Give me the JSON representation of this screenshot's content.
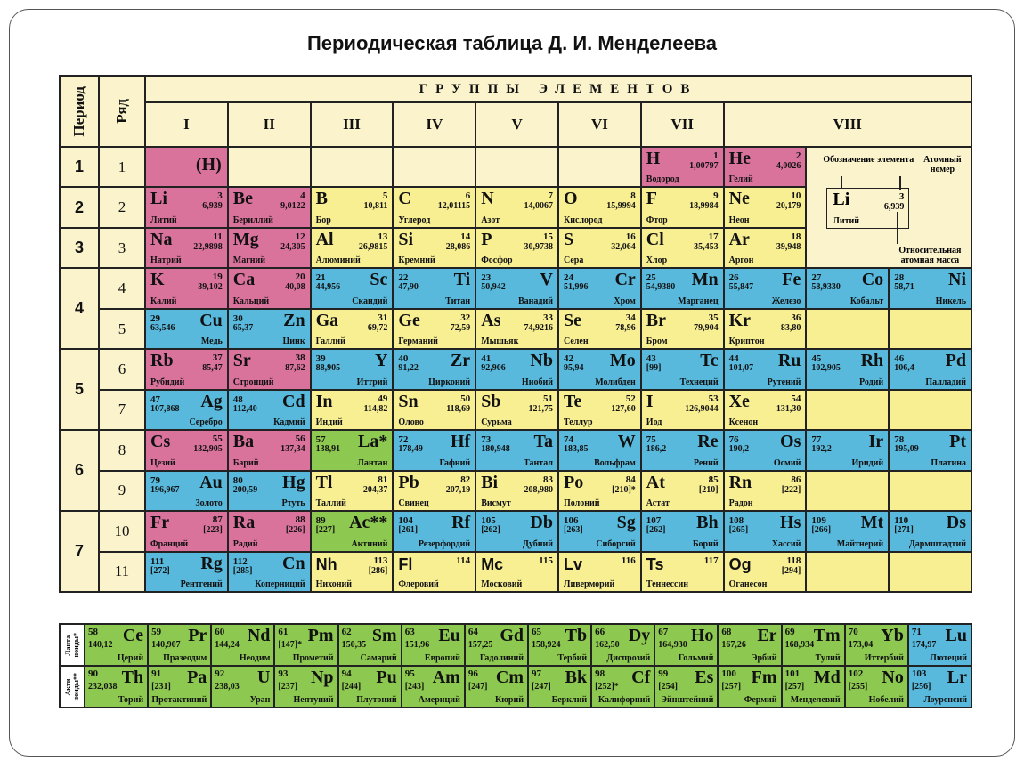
{
  "title": "Периодическая таблица Д. И. Менделеева",
  "colors": {
    "s": "#d9739c",
    "p": "#f8ef93",
    "d": "#58b9dc",
    "f": "#8dc850",
    "empty": "#faf3cc"
  },
  "headers": {
    "period": "Период",
    "row": "Ряд",
    "groups": "ГРУППЫ ЭЛЕМЕНТОВ",
    "group_numerals": [
      "I",
      "II",
      "III",
      "IV",
      "V",
      "VI",
      "VII",
      "VIII"
    ]
  },
  "periods": [
    {
      "label": "1",
      "rows": 1
    },
    {
      "label": "2",
      "rows": 1
    },
    {
      "label": "3",
      "rows": 1
    },
    {
      "label": "4",
      "rows": 2
    },
    {
      "label": "5",
      "rows": 2
    },
    {
      "label": "6",
      "rows": 2
    },
    {
      "label": "7",
      "rows": 2
    }
  ],
  "row_labels": [
    "1",
    "2",
    "3",
    "4",
    "5",
    "6",
    "7",
    "8",
    "9",
    "10",
    "11"
  ],
  "hydrogen_placeholder": "(H)",
  "legend": {
    "symbol_label": "Обозначение элемента",
    "number_label": "Атомный номер",
    "mass_label": "Относительная атомная масса",
    "sample": {
      "sym": "Li",
      "z": "3",
      "mass": "6,939",
      "name": "Литий"
    }
  },
  "rows": [
    [
      "HX",
      null,
      null,
      null,
      null,
      null,
      {
        "sym": "H",
        "z": "1",
        "mass": "1,00797",
        "name": "Водород",
        "type": "s",
        "side": "L"
      },
      {
        "sym": "He",
        "z": "2",
        "mass": "4,0026",
        "name": "Гелий",
        "type": "s",
        "side": "L"
      },
      "LEG",
      "LEG"
    ],
    [
      {
        "sym": "Li",
        "z": "3",
        "mass": "6,939",
        "name": "Литий",
        "type": "s",
        "side": "L"
      },
      {
        "sym": "Be",
        "z": "4",
        "mass": "9,0122",
        "name": "Бериллий",
        "type": "s",
        "side": "L"
      },
      {
        "sym": "B",
        "z": "5",
        "mass": "10,811",
        "name": "Бор",
        "type": "p",
        "side": "L"
      },
      {
        "sym": "C",
        "z": "6",
        "mass": "12,01115",
        "name": "Углерод",
        "type": "p",
        "side": "L"
      },
      {
        "sym": "N",
        "z": "7",
        "mass": "14,0067",
        "name": "Азот",
        "type": "p",
        "side": "L"
      },
      {
        "sym": "O",
        "z": "8",
        "mass": "15,9994",
        "name": "Кислород",
        "type": "p",
        "side": "L"
      },
      {
        "sym": "F",
        "z": "9",
        "mass": "18,9984",
        "name": "Фтор",
        "type": "p",
        "side": "L"
      },
      {
        "sym": "Ne",
        "z": "10",
        "mass": "20,179",
        "name": "Неон",
        "type": "p",
        "side": "L"
      },
      "LEG",
      "LEG"
    ],
    [
      {
        "sym": "Na",
        "z": "11",
        "mass": "22,9898",
        "name": "Натрий",
        "type": "s",
        "side": "L"
      },
      {
        "sym": "Mg",
        "z": "12",
        "mass": "24,305",
        "name": "Магний",
        "type": "s",
        "side": "L"
      },
      {
        "sym": "Al",
        "z": "13",
        "mass": "26,9815",
        "name": "Алюминий",
        "type": "p",
        "side": "L"
      },
      {
        "sym": "Si",
        "z": "14",
        "mass": "28,086",
        "name": "Кремний",
        "type": "p",
        "side": "L"
      },
      {
        "sym": "P",
        "z": "15",
        "mass": "30,9738",
        "name": "Фосфор",
        "type": "p",
        "side": "L"
      },
      {
        "sym": "S",
        "z": "16",
        "mass": "32,064",
        "name": "Сера",
        "type": "p",
        "side": "L"
      },
      {
        "sym": "Cl",
        "z": "17",
        "mass": "35,453",
        "name": "Хлор",
        "type": "p",
        "side": "L"
      },
      {
        "sym": "Ar",
        "z": "18",
        "mass": "39,948",
        "name": "Аргон",
        "type": "p",
        "side": "L"
      },
      "LEG",
      "LEG"
    ],
    [
      {
        "sym": "K",
        "z": "19",
        "mass": "39,102",
        "name": "Калий",
        "type": "s",
        "side": "L"
      },
      {
        "sym": "Ca",
        "z": "20",
        "mass": "40,08",
        "name": "Кальций",
        "type": "s",
        "side": "L"
      },
      {
        "sym": "Sc",
        "z": "21",
        "mass": "44,956",
        "name": "Скандий",
        "type": "d",
        "side": "R"
      },
      {
        "sym": "Ti",
        "z": "22",
        "mass": "47,90",
        "name": "Титан",
        "type": "d",
        "side": "R"
      },
      {
        "sym": "V",
        "z": "23",
        "mass": "50,942",
        "name": "Ванадий",
        "type": "d",
        "side": "R"
      },
      {
        "sym": "Cr",
        "z": "24",
        "mass": "51,996",
        "name": "Хром",
        "type": "d",
        "side": "R"
      },
      {
        "sym": "Mn",
        "z": "25",
        "mass": "54,9380",
        "name": "Марганец",
        "type": "d",
        "side": "R"
      },
      {
        "sym": "Fe",
        "z": "26",
        "mass": "55,847",
        "name": "Железо",
        "type": "d",
        "side": "R"
      },
      {
        "sym": "Co",
        "z": "27",
        "mass": "58,9330",
        "name": "Кобальт",
        "type": "d",
        "side": "R"
      },
      {
        "sym": "Ni",
        "z": "28",
        "mass": "58,71",
        "name": "Никель",
        "type": "d",
        "side": "R"
      }
    ],
    [
      {
        "sym": "Cu",
        "z": "29",
        "mass": "63,546",
        "name": "Медь",
        "type": "d",
        "side": "R"
      },
      {
        "sym": "Zn",
        "z": "30",
        "mass": "65,37",
        "name": "Цинк",
        "type": "d",
        "side": "R"
      },
      {
        "sym": "Ga",
        "z": "31",
        "mass": "69,72",
        "name": "Галлий",
        "type": "p",
        "side": "L"
      },
      {
        "sym": "Ge",
        "z": "32",
        "mass": "72,59",
        "name": "Германий",
        "type": "p",
        "side": "L"
      },
      {
        "sym": "As",
        "z": "33",
        "mass": "74,9216",
        "name": "Мышьяк",
        "type": "p",
        "side": "L"
      },
      {
        "sym": "Se",
        "z": "34",
        "mass": "78,96",
        "name": "Селен",
        "type": "p",
        "side": "L"
      },
      {
        "sym": "Br",
        "z": "35",
        "mass": "79,904",
        "name": "Бром",
        "type": "p",
        "side": "L"
      },
      {
        "sym": "Kr",
        "z": "36",
        "mass": "83,80",
        "name": "Криптон",
        "type": "p",
        "side": "L"
      },
      "EP",
      "EP"
    ],
    [
      {
        "sym": "Rb",
        "z": "37",
        "mass": "85,47",
        "name": "Рубидий",
        "type": "s",
        "side": "L"
      },
      {
        "sym": "Sr",
        "z": "38",
        "mass": "87,62",
        "name": "Стронций",
        "type": "s",
        "side": "L"
      },
      {
        "sym": "Y",
        "z": "39",
        "mass": "88,905",
        "name": "Иттрий",
        "type": "d",
        "side": "R"
      },
      {
        "sym": "Zr",
        "z": "40",
        "mass": "91,22",
        "name": "Цирконий",
        "type": "d",
        "side": "R"
      },
      {
        "sym": "Nb",
        "z": "41",
        "mass": "92,906",
        "name": "Ниобий",
        "type": "d",
        "side": "R"
      },
      {
        "sym": "Mo",
        "z": "42",
        "mass": "95,94",
        "name": "Молибден",
        "type": "d",
        "side": "R"
      },
      {
        "sym": "Tc",
        "z": "43",
        "mass": "[99]",
        "name": "Технеций",
        "type": "d",
        "side": "R"
      },
      {
        "sym": "Ru",
        "z": "44",
        "mass": "101,07",
        "name": "Рутений",
        "type": "d",
        "side": "R"
      },
      {
        "sym": "Rh",
        "z": "45",
        "mass": "102,905",
        "name": "Родий",
        "type": "d",
        "side": "R"
      },
      {
        "sym": "Pd",
        "z": "46",
        "mass": "106,4",
        "name": "Палладий",
        "type": "d",
        "side": "R"
      }
    ],
    [
      {
        "sym": "Ag",
        "z": "47",
        "mass": "107,868",
        "name": "Серебро",
        "type": "d",
        "side": "R"
      },
      {
        "sym": "Cd",
        "z": "48",
        "mass": "112,40",
        "name": "Кадмий",
        "type": "d",
        "side": "R"
      },
      {
        "sym": "In",
        "z": "49",
        "mass": "114,82",
        "name": "Индий",
        "type": "p",
        "side": "L"
      },
      {
        "sym": "Sn",
        "z": "50",
        "mass": "118,69",
        "name": "Олово",
        "type": "p",
        "side": "L"
      },
      {
        "sym": "Sb",
        "z": "51",
        "mass": "121,75",
        "name": "Сурьма",
        "type": "p",
        "side": "L"
      },
      {
        "sym": "Te",
        "z": "52",
        "mass": "127,60",
        "name": "Теллур",
        "type": "p",
        "side": "L"
      },
      {
        "sym": "I",
        "z": "53",
        "mass": "126,9044",
        "name": "Иод",
        "type": "p",
        "side": "L"
      },
      {
        "sym": "Xe",
        "z": "54",
        "mass": "131,30",
        "name": "Ксенон",
        "type": "p",
        "side": "L"
      },
      "EP",
      "EP"
    ],
    [
      {
        "sym": "Cs",
        "z": "55",
        "mass": "132,905",
        "name": "Цезий",
        "type": "s",
        "side": "L"
      },
      {
        "sym": "Ba",
        "z": "56",
        "mass": "137,34",
        "name": "Барий",
        "type": "s",
        "side": "L"
      },
      {
        "sym": "La*",
        "z": "57",
        "mass": "138,91",
        "name": "Лантан",
        "type": "f",
        "side": "R"
      },
      {
        "sym": "Hf",
        "z": "72",
        "mass": "178,49",
        "name": "Гафний",
        "type": "d",
        "side": "R"
      },
      {
        "sym": "Ta",
        "z": "73",
        "mass": "180,948",
        "name": "Тантал",
        "type": "d",
        "side": "R"
      },
      {
        "sym": "W",
        "z": "74",
        "mass": "183,85",
        "name": "Вольфрам",
        "type": "d",
        "side": "R"
      },
      {
        "sym": "Re",
        "z": "75",
        "mass": "186,2",
        "name": "Рений",
        "type": "d",
        "side": "R"
      },
      {
        "sym": "Os",
        "z": "76",
        "mass": "190,2",
        "name": "Осмий",
        "type": "d",
        "side": "R"
      },
      {
        "sym": "Ir",
        "z": "77",
        "mass": "192,2",
        "name": "Иридий",
        "type": "d",
        "side": "R"
      },
      {
        "sym": "Pt",
        "z": "78",
        "mass": "195,09",
        "name": "Платина",
        "type": "d",
        "side": "R"
      }
    ],
    [
      {
        "sym": "Au",
        "z": "79",
        "mass": "196,967",
        "name": "Золото",
        "type": "d",
        "side": "R"
      },
      {
        "sym": "Hg",
        "z": "80",
        "mass": "200,59",
        "name": "Ртуть",
        "type": "d",
        "side": "R"
      },
      {
        "sym": "Tl",
        "z": "81",
        "mass": "204,37",
        "name": "Таллий",
        "type": "p",
        "side": "L"
      },
      {
        "sym": "Pb",
        "z": "82",
        "mass": "207,19",
        "name": "Свинец",
        "type": "p",
        "side": "L"
      },
      {
        "sym": "Bi",
        "z": "83",
        "mass": "208,980",
        "name": "Висмут",
        "type": "p",
        "side": "L"
      },
      {
        "sym": "Po",
        "z": "84",
        "mass": "[210]*",
        "name": "Полоний",
        "type": "p",
        "side": "L"
      },
      {
        "sym": "At",
        "z": "85",
        "mass": "[210]",
        "name": "Астат",
        "type": "p",
        "side": "L"
      },
      {
        "sym": "Rn",
        "z": "86",
        "mass": "[222]",
        "name": "Радон",
        "type": "p",
        "side": "L"
      },
      "EP",
      "EP"
    ],
    [
      {
        "sym": "Fr",
        "z": "87",
        "mass": "[223]",
        "name": "Франций",
        "type": "s",
        "side": "L"
      },
      {
        "sym": "Ra",
        "z": "88",
        "mass": "[226]",
        "name": "Радий",
        "type": "s",
        "side": "L"
      },
      {
        "sym": "Ac**",
        "z": "89",
        "mass": "[227]",
        "name": "Актиний",
        "type": "f",
        "side": "R"
      },
      {
        "sym": "Rf",
        "z": "104",
        "mass": "[261]",
        "name": "Резерфордий",
        "type": "d",
        "side": "R"
      },
      {
        "sym": "Db",
        "z": "105",
        "mass": "[262]",
        "name": "Дубний",
        "type": "d",
        "side": "R"
      },
      {
        "sym": "Sg",
        "z": "106",
        "mass": "[263]",
        "name": "Сиборгий",
        "type": "d",
        "side": "R"
      },
      {
        "sym": "Bh",
        "z": "107",
        "mass": "[262]",
        "name": "Борий",
        "type": "d",
        "side": "R"
      },
      {
        "sym": "Hs",
        "z": "108",
        "mass": "[265]",
        "name": "Хассий",
        "type": "d",
        "side": "R"
      },
      {
        "sym": "Mt",
        "z": "109",
        "mass": "[266]",
        "name": "Майтнерий",
        "type": "d",
        "side": "R"
      },
      {
        "sym": "Ds",
        "z": "110",
        "mass": "[271]",
        "name": "Дармштадтий",
        "type": "d",
        "side": "R"
      }
    ],
    [
      {
        "sym": "Rg",
        "z": "111",
        "mass": "[272]",
        "name": "Рентгений",
        "type": "d",
        "side": "R"
      },
      {
        "sym": "Cn",
        "z": "112",
        "mass": "[285]",
        "name": "Коперниций",
        "type": "d",
        "side": "R"
      },
      {
        "sym": "Nh",
        "z": "113",
        "mass": "[286]",
        "name": "Нихоний",
        "type": "p",
        "side": "L"
      },
      {
        "sym": "Fl",
        "z": "114",
        "name": "Флеровий",
        "type": "p",
        "side": "L"
      },
      {
        "sym": "Mc",
        "z": "115",
        "name": "Московий",
        "type": "p",
        "side": "L"
      },
      {
        "sym": "Lv",
        "z": "116",
        "name": "Ливерморий",
        "type": "p",
        "side": "L"
      },
      {
        "sym": "Ts",
        "z": "117",
        "name": "Теннессин",
        "type": "p",
        "side": "L"
      },
      {
        "sym": "Og",
        "z": "118",
        "mass": "[294]",
        "name": "Оганесон",
        "type": "p",
        "side": "L"
      },
      "EP",
      "EP"
    ]
  ],
  "fblock": {
    "lanthanides_label": "Ланта\nноиды*",
    "actinides_label": "Акти\nноиды**",
    "lanthanides": [
      {
        "sym": "Ce",
        "z": "58",
        "mass": "140,12",
        "name": "Церий",
        "type": "f"
      },
      {
        "sym": "Pr",
        "z": "59",
        "mass": "140,907",
        "name": "Празеодим",
        "type": "f"
      },
      {
        "sym": "Nd",
        "z": "60",
        "mass": "144,24",
        "name": "Неодим",
        "type": "f"
      },
      {
        "sym": "Pm",
        "z": "61",
        "mass": "[147]*",
        "name": "Прометий",
        "type": "f"
      },
      {
        "sym": "Sm",
        "z": "62",
        "mass": "150,35",
        "name": "Самарий",
        "type": "f"
      },
      {
        "sym": "Eu",
        "z": "63",
        "mass": "151,96",
        "name": "Европий",
        "type": "f"
      },
      {
        "sym": "Gd",
        "z": "64",
        "mass": "157,25",
        "name": "Гадолиний",
        "type": "f"
      },
      {
        "sym": "Tb",
        "z": "65",
        "mass": "158,924",
        "name": "Тербий",
        "type": "f"
      },
      {
        "sym": "Dy",
        "z": "66",
        "mass": "162,50",
        "name": "Диспрозий",
        "type": "f"
      },
      {
        "sym": "Ho",
        "z": "67",
        "mass": "164,930",
        "name": "Гольмий",
        "type": "f"
      },
      {
        "sym": "Er",
        "z": "68",
        "mass": "167,26",
        "name": "Эрбий",
        "type": "f"
      },
      {
        "sym": "Tm",
        "z": "69",
        "mass": "168,934",
        "name": "Тулий",
        "type": "f"
      },
      {
        "sym": "Yb",
        "z": "70",
        "mass": "173,04",
        "name": "Иттербий",
        "type": "f"
      },
      {
        "sym": "Lu",
        "z": "71",
        "mass": "174,97",
        "name": "Лютеций",
        "type": "d"
      }
    ],
    "actinides": [
      {
        "sym": "Th",
        "z": "90",
        "mass": "232,038",
        "name": "Торий",
        "type": "f"
      },
      {
        "sym": "Pa",
        "z": "91",
        "mass": "[231]",
        "name": "Протактиний",
        "type": "f"
      },
      {
        "sym": "U",
        "z": "92",
        "mass": "238,03",
        "name": "Уран",
        "type": "f"
      },
      {
        "sym": "Np",
        "z": "93",
        "mass": "[237]",
        "name": "Нептуний",
        "type": "f"
      },
      {
        "sym": "Pu",
        "z": "94",
        "mass": "[244]",
        "name": "Плутоний",
        "type": "f"
      },
      {
        "sym": "Am",
        "z": "95",
        "mass": "[243]",
        "name": "Америций",
        "type": "f"
      },
      {
        "sym": "Cm",
        "z": "96",
        "mass": "[247]",
        "name": "Кюрий",
        "type": "f"
      },
      {
        "sym": "Bk",
        "z": "97",
        "mass": "[247]",
        "name": "Берклий",
        "type": "f"
      },
      {
        "sym": "Cf",
        "z": "98",
        "mass": "[252]*",
        "name": "Калифорний",
        "type": "f"
      },
      {
        "sym": "Es",
        "z": "99",
        "mass": "[254]",
        "name": "Эйнштейний",
        "type": "f"
      },
      {
        "sym": "Fm",
        "z": "100",
        "mass": "[257]",
        "name": "Фермий",
        "type": "f"
      },
      {
        "sym": "Md",
        "z": "101",
        "mass": "[257]",
        "name": "Менделевий",
        "type": "f"
      },
      {
        "sym": "No",
        "z": "102",
        "mass": "[255]",
        "name": "Нобелий",
        "type": "f"
      },
      {
        "sym": "Lr",
        "z": "103",
        "mass": "[256]",
        "name": "Лоуренсий",
        "type": "d"
      }
    ]
  }
}
